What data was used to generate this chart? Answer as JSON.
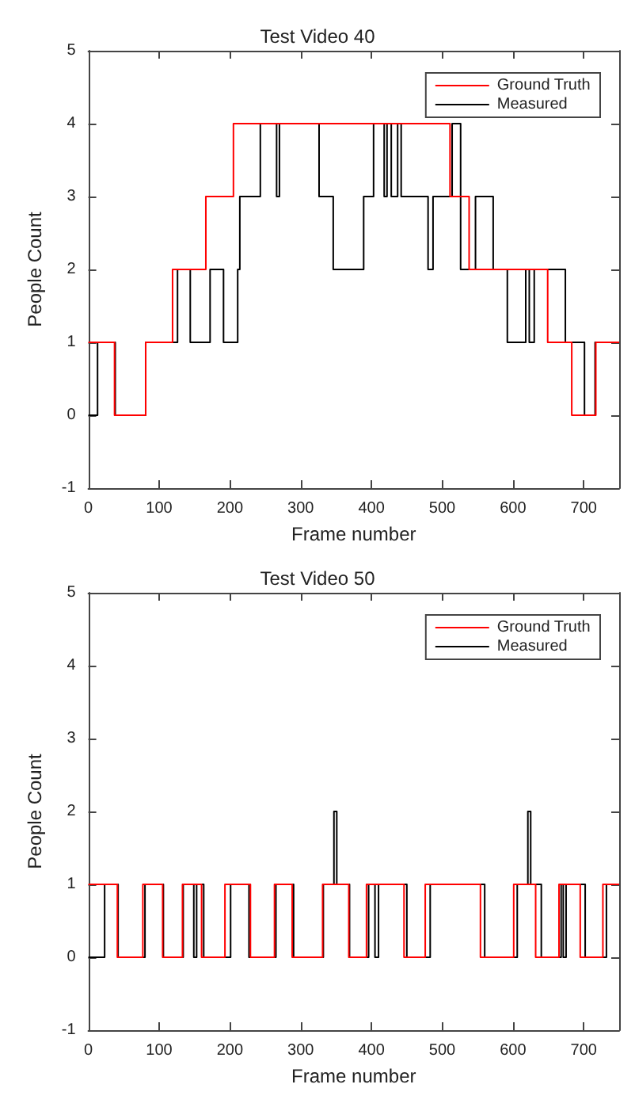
{
  "chart_data": [
    {
      "type": "step",
      "title": "Test Video 40",
      "xlabel": "Frame number",
      "ylabel": "People Count",
      "xlim": [
        0,
        750
      ],
      "xticks": [
        0,
        100,
        200,
        300,
        400,
        500,
        600,
        700
      ],
      "ylim": [
        -1,
        5
      ],
      "yticks": [
        -1,
        0,
        1,
        2,
        3,
        4,
        5
      ],
      "legend": "top right",
      "series": [
        {
          "name": "Ground Truth",
          "color": "#ff0000",
          "x": [
            0,
            37,
            81,
            119,
            166,
            205,
            511,
            538,
            649,
            683,
            717,
            750
          ],
          "values": [
            1,
            0,
            1,
            2,
            3,
            4,
            3,
            2,
            1,
            0,
            1,
            1
          ]
        },
        {
          "name": "Measured",
          "color": "#000000",
          "x": [
            0,
            13,
            38,
            81,
            126,
            144,
            172,
            191,
            211,
            214,
            243,
            266,
            270,
            326,
            346,
            389,
            403,
            418,
            422,
            428,
            437,
            442,
            480,
            487,
            514,
            526,
            547,
            572,
            592,
            618,
            623,
            630,
            674,
            701,
            716,
            750
          ],
          "values": [
            0,
            1,
            0,
            1,
            2,
            1,
            2,
            1,
            2,
            3,
            4,
            3,
            4,
            3,
            2,
            3,
            4,
            3,
            4,
            3,
            4,
            3,
            2,
            3,
            4,
            2,
            3,
            2,
            1,
            2,
            1,
            2,
            1,
            0,
            1,
            1
          ]
        }
      ]
    },
    {
      "type": "step",
      "title": "Test Video 50",
      "xlabel": "Frame number",
      "ylabel": "People Count",
      "xlim": [
        0,
        750
      ],
      "xticks": [
        0,
        100,
        200,
        300,
        400,
        500,
        600,
        700
      ],
      "ylim": [
        -1,
        5
      ],
      "yticks": [
        -1,
        0,
        1,
        2,
        3,
        4,
        5
      ],
      "legend": "top right",
      "series": [
        {
          "name": "Ground Truth",
          "color": "#ff0000",
          "x": [
            0,
            41,
            77,
            105,
            133,
            160,
            193,
            229,
            263,
            288,
            331,
            368,
            393,
            446,
            476,
            554,
            601,
            632,
            665,
            695,
            727,
            750
          ],
          "values": [
            1,
            0,
            1,
            0,
            1,
            0,
            1,
            0,
            1,
            0,
            1,
            0,
            1,
            0,
            1,
            0,
            1,
            0,
            1,
            0,
            1,
            1
          ]
        },
        {
          "name": "Measured",
          "color": "#000000",
          "x": [
            0,
            23,
            42,
            80,
            106,
            134,
            149,
            153,
            163,
            201,
            227,
            265,
            290,
            332,
            347,
            351,
            369,
            396,
            405,
            410,
            450,
            483,
            560,
            606,
            621,
            625,
            640,
            668,
            671,
            675,
            702,
            732,
            750
          ],
          "values": [
            0,
            1,
            0,
            1,
            0,
            1,
            0,
            1,
            0,
            1,
            0,
            1,
            0,
            1,
            2,
            1,
            0,
            1,
            0,
            1,
            0,
            1,
            0,
            1,
            2,
            1,
            0,
            1,
            0,
            1,
            0,
            1,
            1
          ]
        }
      ]
    }
  ]
}
